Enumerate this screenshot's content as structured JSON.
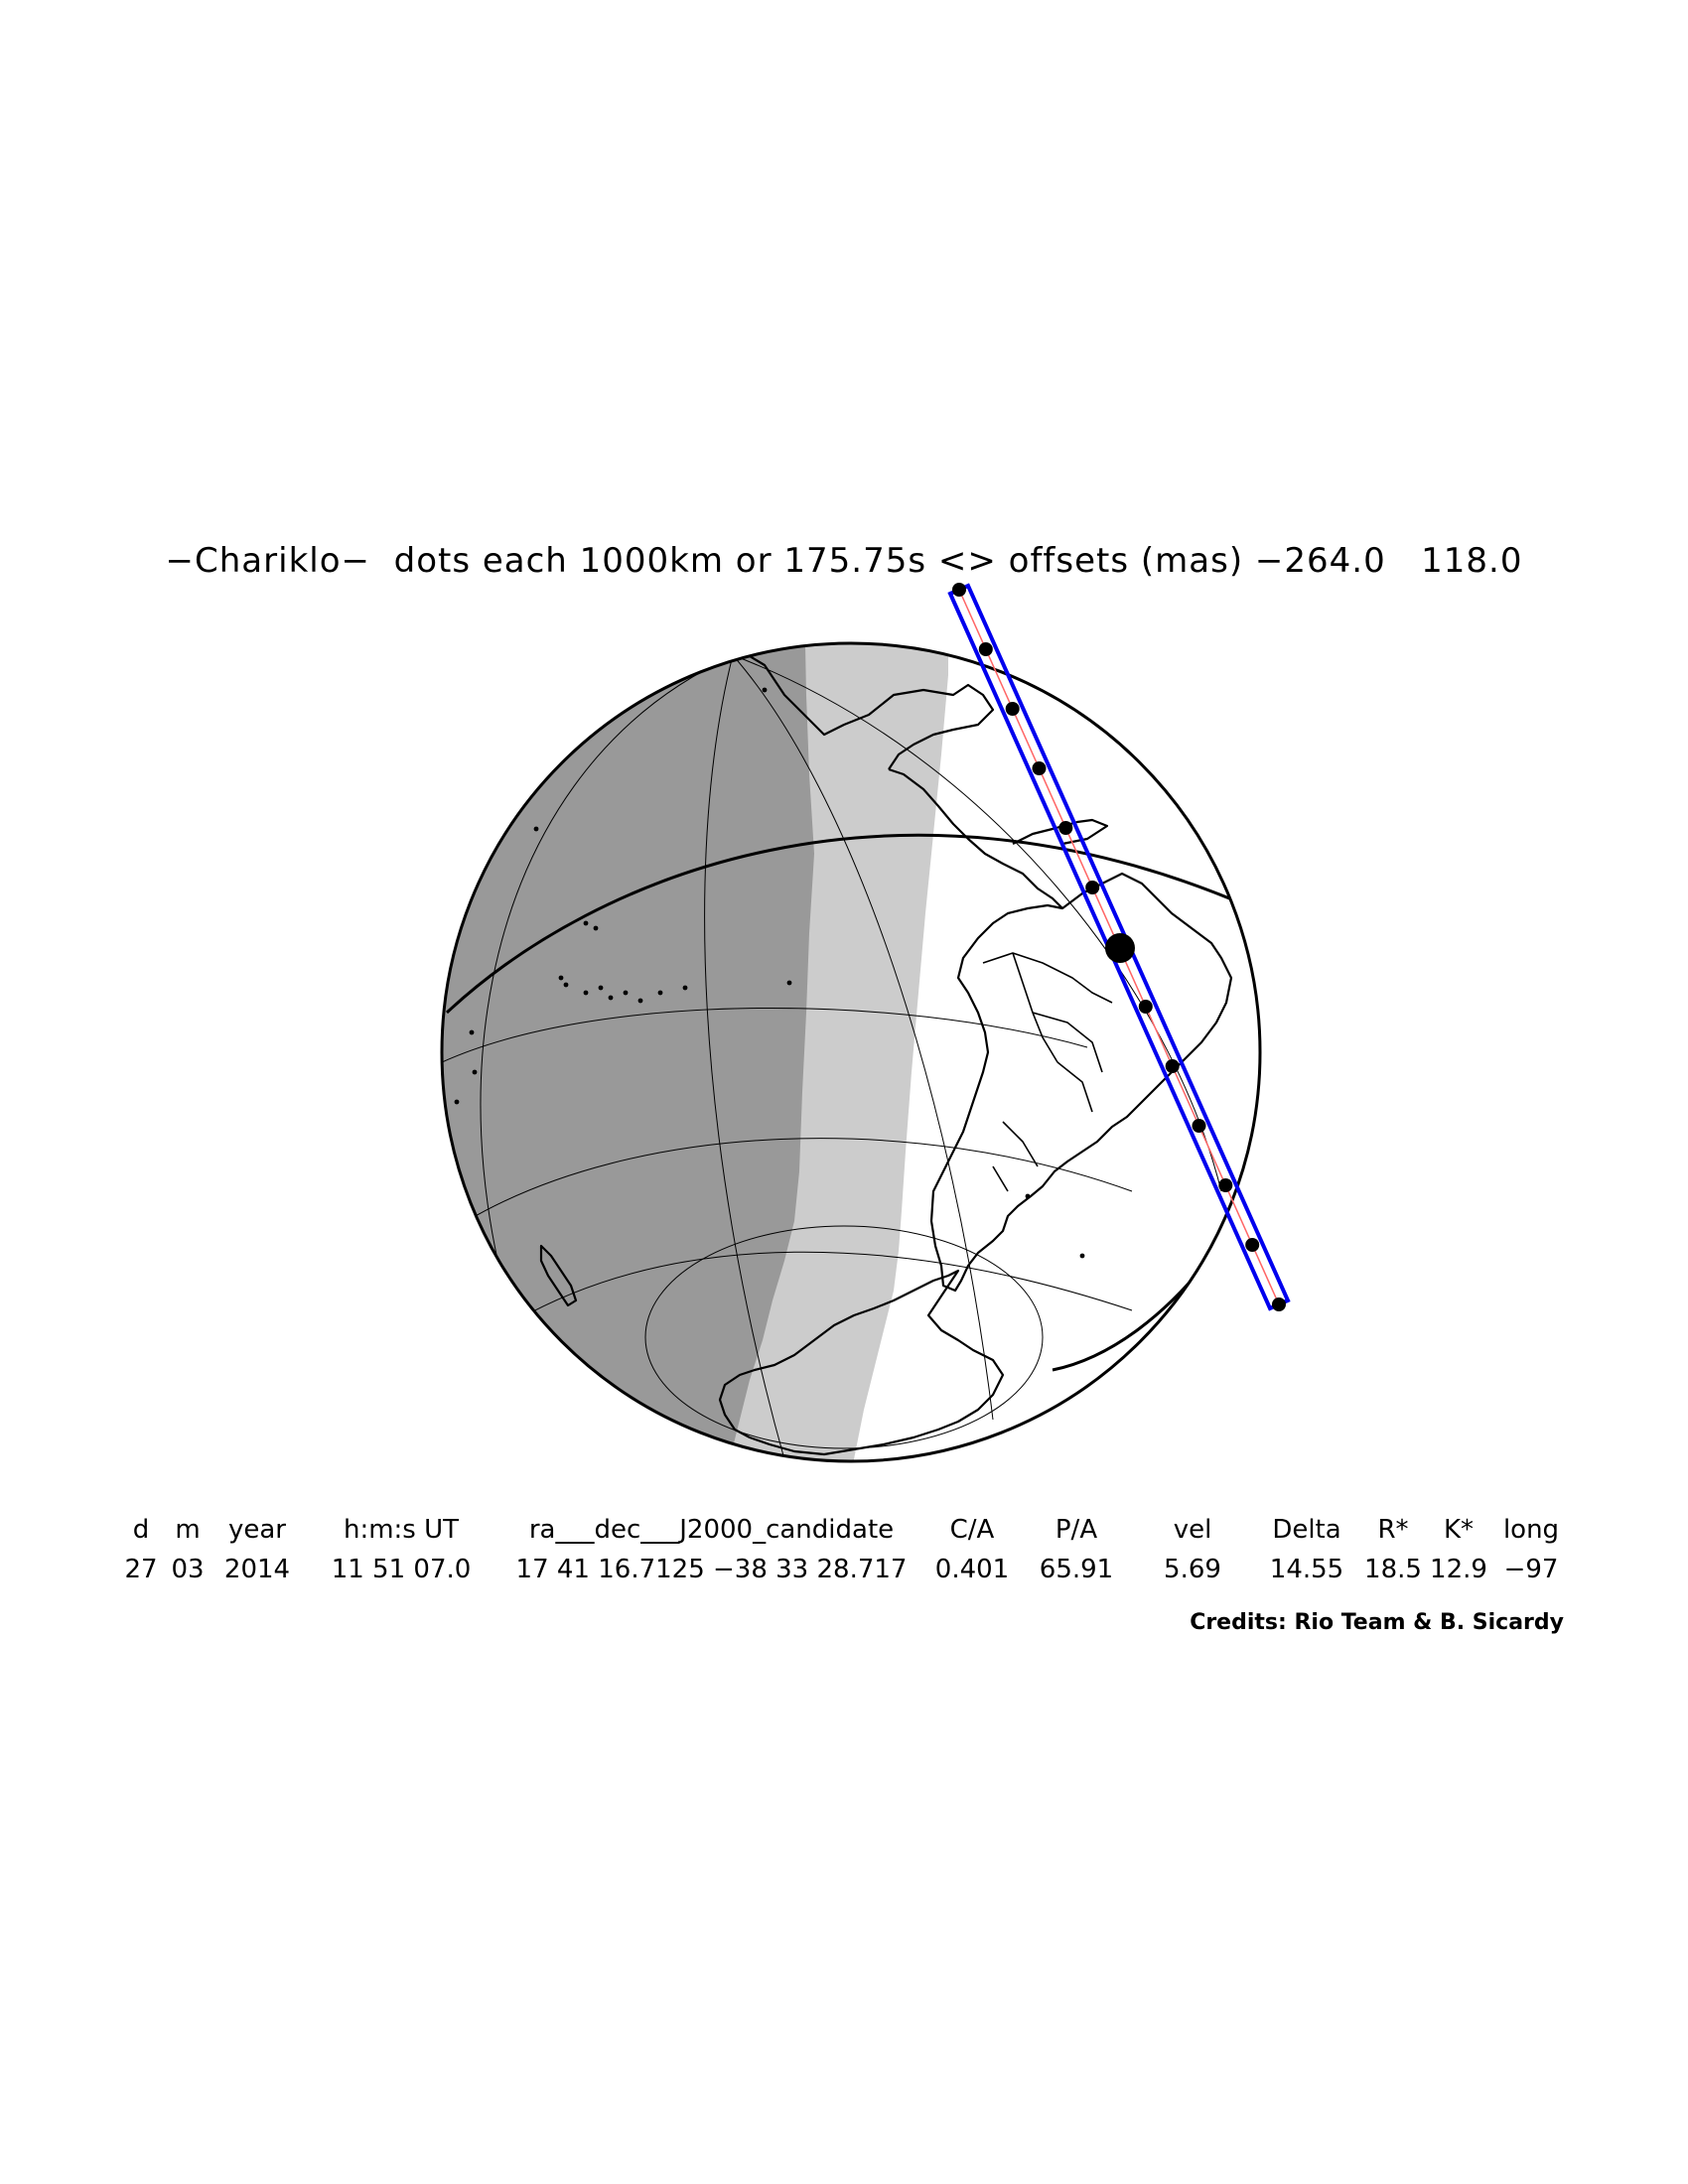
{
  "title": "−Chariklo−  dots each 1000km or 175.75s <> offsets (mas) −264.0   118.0",
  "table": {
    "headers": {
      "d": "d",
      "m": "m",
      "year": "year",
      "hms": "h:m:s UT",
      "radec": "ra___dec___J2000_candidate",
      "ca": "C/A",
      "pa": "P/A",
      "vel": "vel",
      "delta": "Delta",
      "rstar": "R*",
      "kstar": "K*",
      "long": "long"
    },
    "values": {
      "d": "27",
      "m": "03",
      "year": "2014",
      "hms": "11 51 07.0",
      "radec": "17 41 16.7125 −38 33 28.717",
      "ca": "0.401",
      "pa": "65.91",
      "vel": "5.69",
      "delta": "14.55",
      "rstar": "18.5",
      "kstar": "12.9",
      "long": "−97"
    }
  },
  "credits": "Credits: Rio Team & B. Sicardy",
  "colors": {
    "night": "#999999",
    "twilight": "#cccccc",
    "day": "#ffffff",
    "path": "#0000ee",
    "path_center": "#ff6666",
    "outline": "#000000"
  },
  "map": {
    "projection": "orthographic",
    "bodies": [
      "North America",
      "Central America",
      "Caribbean",
      "South America",
      "Antarctica",
      "New Zealand",
      "Pacific islands"
    ],
    "shadow_path": {
      "track_points": 13,
      "point_spacing_km": 1000,
      "point_spacing_s": 175.75,
      "closest_approach_marker": true
    }
  }
}
